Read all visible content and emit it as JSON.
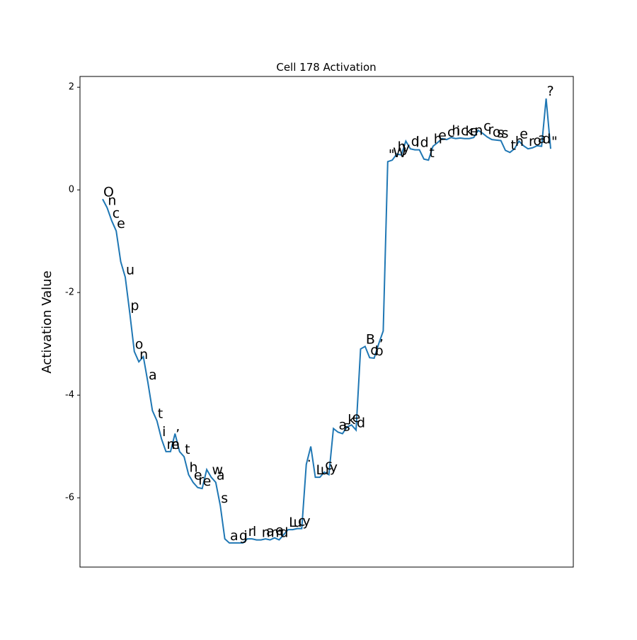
{
  "chart_data": {
    "type": "line",
    "title": "Cell 178 Activation",
    "y_label": "Activation Value",
    "categories": [
      "O",
      "n",
      "c",
      "e",
      " ",
      "u",
      "p",
      "o",
      "n",
      " ",
      "a",
      " ",
      "t",
      "i",
      "m",
      "e",
      ",",
      " ",
      "t",
      "h",
      "e",
      "r",
      "e",
      " ",
      "w",
      "a",
      "s",
      " ",
      "a",
      " ",
      "g",
      "i",
      "r",
      "l",
      " ",
      "n",
      "a",
      "m",
      "e",
      "d",
      " ",
      "L",
      "u",
      "c",
      "y",
      ".",
      " ",
      "L",
      "u",
      "c",
      "y",
      " ",
      "a",
      "s",
      "k",
      "e",
      "d",
      " ",
      "B",
      "o",
      "b",
      ",",
      " ",
      "\"",
      "W",
      "h",
      "y",
      " ",
      "d",
      "i",
      "d",
      " ",
      "t",
      "h",
      "e",
      " ",
      "c",
      "h",
      "i",
      "c",
      "k",
      "e",
      "n",
      " ",
      "c",
      "r",
      "o",
      "s",
      "s",
      " ",
      "t",
      "h",
      "e",
      " ",
      "r",
      "o",
      "a",
      "d",
      "?",
      "\""
    ],
    "values": [
      -0.18,
      -0.35,
      -0.6,
      -0.8,
      -1.4,
      -1.7,
      -2.4,
      -3.15,
      -3.35,
      -3.25,
      -3.75,
      -4.3,
      -4.5,
      -4.85,
      -5.1,
      -5.1,
      -4.75,
      -5.1,
      -5.2,
      -5.55,
      -5.7,
      -5.8,
      -5.82,
      -5.45,
      -5.6,
      -5.7,
      -6.15,
      -6.8,
      -6.88,
      -6.88,
      -6.88,
      -6.88,
      -6.8,
      -6.8,
      -6.82,
      -6.82,
      -6.8,
      -6.82,
      -6.78,
      -6.82,
      -6.72,
      -6.62,
      -6.62,
      -6.6,
      -6.6,
      -5.35,
      -5.0,
      -5.6,
      -5.6,
      -5.5,
      -5.55,
      -4.65,
      -4.72,
      -4.75,
      -4.62,
      -4.58,
      -4.68,
      -3.1,
      -3.05,
      -3.27,
      -3.28,
      -3.0,
      -2.75,
      0.55,
      0.58,
      0.7,
      0.68,
      0.95,
      0.8,
      0.78,
      0.78,
      0.6,
      0.58,
      0.85,
      0.92,
      1.0,
      0.98,
      1.02,
      1.0,
      1.01,
      1.0,
      1.0,
      1.02,
      1.16,
      1.1,
      1.03,
      0.98,
      0.97,
      0.96,
      0.77,
      0.73,
      0.8,
      0.95,
      0.86,
      0.8,
      0.82,
      0.86,
      0.85,
      1.78,
      0.8
    ],
    "color": "#1f77b4",
    "ylim": [
      -7.35,
      2.21
    ],
    "yticks": [
      -6,
      -4,
      -2,
      0,
      2
    ],
    "grid": false
  }
}
